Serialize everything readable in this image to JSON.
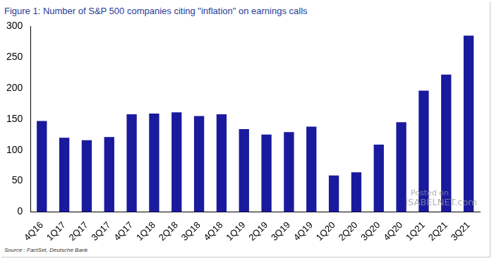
{
  "chart_data": {
    "type": "bar",
    "title": "Figure 1: Number of S&P 500 companies citing \"inflation\" on earnings calls",
    "source": "Source : FactSet, Deutsche Bank",
    "annotations": [
      "Posted on",
      "ISABELNET.com"
    ],
    "categories": [
      "4Q16",
      "1Q17",
      "2Q17",
      "3Q17",
      "4Q17",
      "1Q18",
      "2Q18",
      "3Q18",
      "4Q18",
      "1Q19",
      "2Q19",
      "3Q19",
      "4Q19",
      "1Q20",
      "2Q20",
      "3Q20",
      "4Q20",
      "1Q21",
      "2Q21",
      "3Q21"
    ],
    "values": [
      147,
      120,
      116,
      121,
      158,
      159,
      161,
      155,
      158,
      134,
      125,
      129,
      138,
      59,
      64,
      109,
      145,
      196,
      222,
      285
    ],
    "color": "#1a1a9e",
    "ylim": [
      0,
      300
    ],
    "yticks": [
      0,
      50,
      100,
      150,
      200,
      250,
      300
    ],
    "grid": false
  }
}
